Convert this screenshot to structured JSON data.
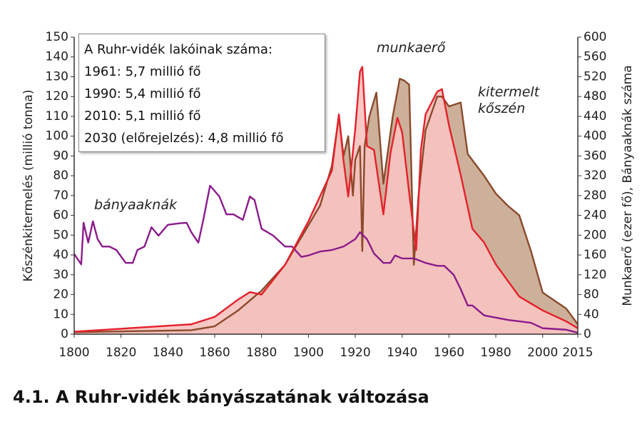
{
  "chart_data": {
    "type": "area",
    "title": "4.1. A Ruhr-vidék bányászatának változása",
    "ylabel": "Kőszénkitermelés (millió tonna)",
    "y2label": "Munkaerő (ezer fő), Bányaaknák száma",
    "note_lines": [
      "A Ruhr-vidék lakóinak száma:",
      "1961: 5,7 millió fő",
      "1990: 5,4 millió fő",
      "2010: 5,1 millió fő",
      "2030 (előrejelzés): 4,8 millió fő"
    ],
    "xlim": [
      1800,
      2015
    ],
    "xticks": [
      1800,
      1820,
      1840,
      1860,
      1880,
      1900,
      1920,
      1940,
      1960,
      1980,
      2000,
      2015
    ],
    "ylim": [
      0,
      150
    ],
    "yticks": [
      0,
      10,
      20,
      30,
      40,
      50,
      60,
      70,
      80,
      90,
      100,
      110,
      120,
      130,
      140,
      150
    ],
    "y2lim": [
      0,
      600
    ],
    "y2ticks": [
      0,
      40,
      80,
      120,
      160,
      200,
      240,
      280,
      320,
      360,
      400,
      440,
      480,
      520,
      560,
      600
    ],
    "series": [
      {
        "name": "kitermelt kőszén",
        "color": "#8b4a2b",
        "fill": "#cdb09a",
        "axis": "y",
        "x": [
          1800,
          1850,
          1860,
          1870,
          1875,
          1880,
          1890,
          1900,
          1905,
          1910,
          1913,
          1915,
          1917,
          1919,
          1920,
          1922,
          1923,
          1924,
          1926,
          1929,
          1932,
          1936,
          1939,
          1941,
          1943,
          1945,
          1947,
          1950,
          1955,
          1957,
          1960,
          1965,
          1968,
          1975,
          1980,
          1985,
          1990,
          1995,
          2000,
          2005,
          2010,
          2015
        ],
        "values": [
          1,
          2,
          4,
          12,
          17,
          22,
          35,
          55,
          65,
          85,
          110,
          90,
          100,
          70,
          88,
          95,
          42,
          95,
          110,
          122,
          76,
          110,
          129,
          128,
          126,
          35,
          70,
          103,
          120,
          120,
          115,
          117,
          91,
          80,
          71,
          65,
          60,
          42,
          21,
          17,
          13,
          5
        ]
      },
      {
        "name": "munkaerő",
        "color": "#e5202a",
        "fill": "#f7c3c0",
        "axis": "y2",
        "x": [
          1800,
          1850,
          1860,
          1870,
          1875,
          1880,
          1890,
          1900,
          1910,
          1913,
          1915,
          1917,
          1920,
          1922,
          1923,
          1925,
          1928,
          1932,
          1935,
          1938,
          1940,
          1943,
          1946,
          1948,
          1950,
          1955,
          1957,
          1960,
          1965,
          1970,
          1975,
          1980,
          1990,
          2000,
          2010,
          2015
        ],
        "values": [
          5,
          20,
          35,
          70,
          85,
          80,
          140,
          228,
          330,
          444,
          350,
          278,
          415,
          530,
          540,
          380,
          372,
          242,
          365,
          437,
          408,
          286,
          170,
          372,
          444,
          490,
          495,
          422,
          322,
          213,
          185,
          141,
          76,
          48,
          26,
          12
        ]
      },
      {
        "name": "bányaaknák",
        "color": "#8b1a8b",
        "axis": "y2",
        "x": [
          1800,
          1803,
          1804,
          1806,
          1808,
          1810,
          1812,
          1815,
          1818,
          1822,
          1825,
          1827,
          1830,
          1833,
          1836,
          1840,
          1845,
          1848,
          1850,
          1853,
          1855,
          1858,
          1862,
          1865,
          1868,
          1872,
          1875,
          1877,
          1880,
          1885,
          1890,
          1893,
          1897,
          1900,
          1905,
          1910,
          1915,
          1920,
          1922,
          1925,
          1928,
          1932,
          1935,
          1937,
          1940,
          1945,
          1950,
          1955,
          1958,
          1962,
          1965,
          1968,
          1970,
          1975,
          1985,
          1995,
          2000,
          2010,
          2015
        ],
        "values": [
          162,
          141,
          225,
          185,
          228,
          192,
          177,
          177,
          170,
          144,
          144,
          170,
          177,
          216,
          199,
          221,
          224,
          225,
          206,
          185,
          228,
          300,
          278,
          242,
          242,
          231,
          278,
          271,
          213,
          199,
          177,
          177,
          156,
          159,
          167,
          170,
          177,
          192,
          206,
          192,
          163,
          144,
          144,
          159,
          153,
          153,
          144,
          138,
          138,
          120,
          91,
          58,
          58,
          38,
          29,
          23,
          12,
          9,
          3
        ]
      }
    ]
  }
}
